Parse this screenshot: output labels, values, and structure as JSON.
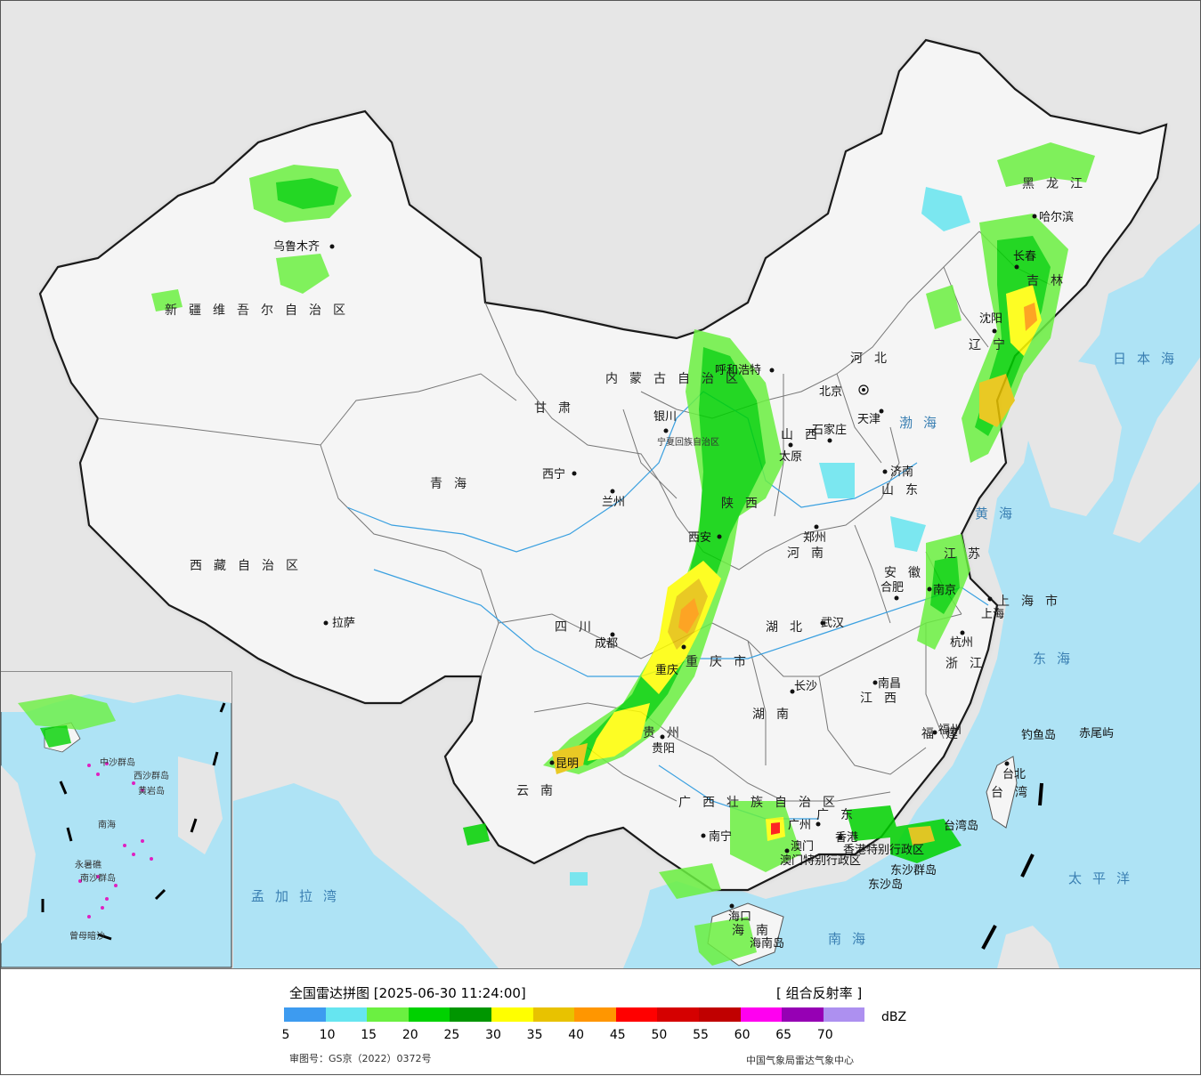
{
  "map": {
    "capital_label": "北京",
    "provinces": [
      {
        "id": "xinjiang",
        "name": "新疆维吾尔自治区"
      },
      {
        "id": "xizang",
        "name": "西藏自治区"
      },
      {
        "id": "qinghai",
        "name": "青海"
      },
      {
        "id": "gansu",
        "name": "甘肃"
      },
      {
        "id": "neimenggu",
        "name": "内蒙古自治区"
      },
      {
        "id": "heilongjiang",
        "name": "黑龙江"
      },
      {
        "id": "jilin",
        "name": "吉林"
      },
      {
        "id": "liaoning",
        "name": "辽宁"
      },
      {
        "id": "hebei",
        "name": "河北"
      },
      {
        "id": "shanxi",
        "name": "山西"
      },
      {
        "id": "shaanxi",
        "name": "陕西"
      },
      {
        "id": "shandong",
        "name": "山东"
      },
      {
        "id": "henan",
        "name": "河南"
      },
      {
        "id": "jiangsu",
        "name": "江苏"
      },
      {
        "id": "anhui",
        "name": "安徽"
      },
      {
        "id": "sichuan",
        "name": "四川"
      },
      {
        "id": "hubei",
        "name": "湖北"
      },
      {
        "id": "chongqing",
        "name": "重庆市"
      },
      {
        "id": "hunan",
        "name": "湖南"
      },
      {
        "id": "jiangxi",
        "name": "江西"
      },
      {
        "id": "zhejiang",
        "name": "浙江"
      },
      {
        "id": "fujian",
        "name": "福建"
      },
      {
        "id": "guizhou",
        "name": "贵州"
      },
      {
        "id": "yunnan",
        "name": "云南"
      },
      {
        "id": "guangxi",
        "name": "广西壮族自治区"
      },
      {
        "id": "guangdong",
        "name": "广东"
      },
      {
        "id": "hainan",
        "name": "海南"
      },
      {
        "id": "taiwan",
        "name": "台湾"
      },
      {
        "id": "ningxia",
        "name": "宁夏回族自治区"
      },
      {
        "id": "shanghai",
        "name": "上海市"
      }
    ],
    "cities": [
      {
        "id": "urumqi",
        "name": "乌鲁木齐"
      },
      {
        "id": "lhasa",
        "name": "拉萨"
      },
      {
        "id": "xining",
        "name": "西宁"
      },
      {
        "id": "lanzhou",
        "name": "兰州"
      },
      {
        "id": "yinchuan",
        "name": "银川"
      },
      {
        "id": "hohhot",
        "name": "呼和浩特"
      },
      {
        "id": "taiyuan",
        "name": "太原"
      },
      {
        "id": "shijiazhuang",
        "name": "石家庄"
      },
      {
        "id": "tianjin",
        "name": "天津"
      },
      {
        "id": "jinan",
        "name": "济南"
      },
      {
        "id": "zhengzhou",
        "name": "郑州"
      },
      {
        "id": "xian",
        "name": "西安"
      },
      {
        "id": "chengdu",
        "name": "成都"
      },
      {
        "id": "chongqing_c",
        "name": "重庆"
      },
      {
        "id": "wuhan",
        "name": "武汉"
      },
      {
        "id": "hefei",
        "name": "合肥"
      },
      {
        "id": "nanjing",
        "name": "南京"
      },
      {
        "id": "shanghai_c",
        "name": "上海"
      },
      {
        "id": "hangzhou",
        "name": "杭州"
      },
      {
        "id": "nanchang",
        "name": "南昌"
      },
      {
        "id": "changsha",
        "name": "长沙"
      },
      {
        "id": "fuzhou",
        "name": "福州"
      },
      {
        "id": "guiyang",
        "name": "贵阳"
      },
      {
        "id": "kunming",
        "name": "昆明"
      },
      {
        "id": "nanning",
        "name": "南宁"
      },
      {
        "id": "guangzhou",
        "name": "广州"
      },
      {
        "id": "haikou",
        "name": "海口"
      },
      {
        "id": "taipei",
        "name": "台北"
      },
      {
        "id": "harbin",
        "name": "哈尔滨"
      },
      {
        "id": "changchun",
        "name": "长春"
      },
      {
        "id": "shenyang",
        "name": "沈阳"
      },
      {
        "id": "hongkong",
        "name": "香港"
      },
      {
        "id": "macau",
        "name": "澳门"
      }
    ],
    "seas": [
      {
        "id": "bohai",
        "name": "渤海"
      },
      {
        "id": "huanghai",
        "name": "黄海"
      },
      {
        "id": "donghai",
        "name": "东海"
      },
      {
        "id": "nanhai",
        "name": "南海"
      },
      {
        "id": "taipingyang",
        "name": "太平洋"
      },
      {
        "id": "ribenhai",
        "name": "日本海"
      },
      {
        "id": "mengjialawan",
        "name": "孟加拉湾"
      }
    ],
    "islands": [
      {
        "id": "diaoyu",
        "name": "钓鱼岛"
      },
      {
        "id": "chiwei",
        "name": "赤尾屿"
      },
      {
        "id": "taiwan_island",
        "name": "台湾岛"
      },
      {
        "id": "dongsha_islands",
        "name": "东沙群岛"
      },
      {
        "id": "dongsha_island",
        "name": "东沙岛"
      },
      {
        "id": "hainan_island",
        "name": "海南岛"
      }
    ],
    "special_regions": [
      {
        "id": "hk_sar",
        "name": "香港特别行政区"
      },
      {
        "id": "mo_sar",
        "name": "澳门特别行政区"
      }
    ],
    "inset": {
      "labels": [
        {
          "id": "nanhai",
          "name": "南海"
        },
        {
          "id": "xisha",
          "name": "西沙群岛"
        },
        {
          "id": "zhongsha",
          "name": "中沙群岛"
        },
        {
          "id": "huangyan",
          "name": "黄岩岛"
        },
        {
          "id": "nansha",
          "name": "南沙群岛"
        },
        {
          "id": "zengmu",
          "name": "曾母暗沙"
        },
        {
          "id": "yongshu",
          "name": "永暑礁"
        }
      ]
    }
  },
  "footer": {
    "title": "全国雷达拼图 [2025-06-30 11:24:00]",
    "product": "[ 组合反射率 ]",
    "unit": "dBZ",
    "approval": "审图号：GS京（2022）0372号",
    "source": "中国气象局雷达气象中心",
    "legend": {
      "colors": [
        "#3d9bf0",
        "#66e5f0",
        "#6bf041",
        "#00d200",
        "#009600",
        "#ffff00",
        "#e8c200",
        "#ff9600",
        "#ff0000",
        "#d50000",
        "#c00000",
        "#ff00f0",
        "#9600b4",
        "#ad90f0"
      ],
      "ticks": [
        "5",
        "10",
        "15",
        "20",
        "25",
        "30",
        "35",
        "40",
        "45",
        "50",
        "55",
        "60",
        "65",
        "70"
      ]
    }
  }
}
